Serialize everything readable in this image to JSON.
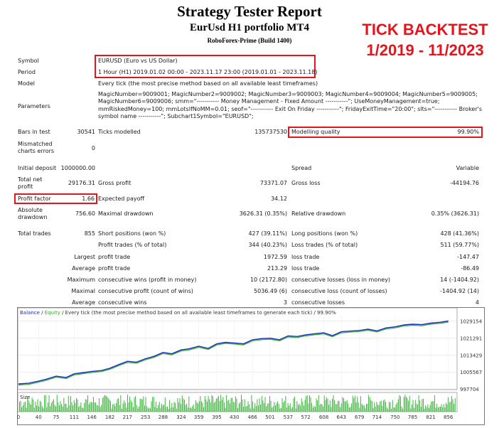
{
  "header": {
    "title": "Strategy Tester Report",
    "subtitle": "EurUsd H1 portfolio MT4",
    "broker": "RoboForex-Prime (Build 1400)",
    "banner_line1": "TICK BACKTEST",
    "banner_line2": "1/2019 - 11/2023",
    "banner_color": "#e3141b"
  },
  "settings": {
    "symbol_label": "Symbol",
    "symbol_value": "EURUSD (Euro vs US Dollar)",
    "period_label": "Period",
    "period_value": "1 Hour (H1) 2019.01.02 00:00 - 2023.11.17 23:00 (2019.01.01 - 2023.11.18)",
    "model_label": "Model",
    "model_value": "Every tick (the most precise method based on all available least timeframes)",
    "parameters_label": "Parameters",
    "parameters_value": "MagicNumber=9009001; MagicNumber2=9009002; MagicNumber3=9009003; MagicNumber4=9009004; MagicNumber5=9009005; MagicNumber6=9009006; smm=\"----------- Money Management - Fixed Amount -----------\"; UseMoneyManagement=true; mmRiskedMoney=100; mmLotsIfNoMM=0.01; seof=\"----------- Exit On Friday -----------\"; FridayExitTime=\"20:00\"; slts=\"----------- Broker's symbol name -----------\"; Subchart1Symbol=\"EURUSD\";"
  },
  "stats": {
    "bars_label": "Bars in test",
    "bars_value": "30541",
    "ticks_label": "Ticks modelled",
    "ticks_value": "135737530",
    "quality_label": "Modelling quality",
    "quality_value": "99.90%",
    "mismatch_label1": "Mismatched",
    "mismatch_label2": "charts errors",
    "mismatch_value": "0",
    "deposit_label": "Initial deposit",
    "deposit_value": "1000000.00",
    "spread_label": "Spread",
    "spread_value": "Variable",
    "netprofit_label1": "Total net",
    "netprofit_label2": "profit",
    "netprofit_value": "29176.31",
    "grossprofit_label": "Gross profit",
    "grossprofit_value": "73371.07",
    "grossloss_label": "Gross loss",
    "grossloss_value": "-44194.76",
    "pf_label": "Profit factor",
    "pf_value": "1.66",
    "payoff_label": "Expected payoff",
    "payoff_value": "34.12",
    "absdd_label1": "Absolute",
    "absdd_label2": "drawdown",
    "absdd_value": "756.60",
    "maxdd_label": "Maximal drawdown",
    "maxdd_value": "3626.31 (0.35%)",
    "reldd_label": "Relative drawdown",
    "reldd_value": "0.35% (3626.31)",
    "trades_label": "Total trades",
    "trades_value": "855",
    "short_label": "Short positions (won %)",
    "short_value": "427 (39.11%)",
    "long_label": "Long positions (won %)",
    "long_value": "428 (41.36%)",
    "profit_trades_label": "Profit trades (% of total)",
    "profit_trades_value": "344 (40.23%)",
    "loss_trades_label": "Loss trades (% of total)",
    "loss_trades_value": "511 (59.77%)",
    "largest_label": "Largest",
    "largest_profit_label": "profit trade",
    "largest_profit_value": "1972.59",
    "largest_loss_label": "loss trade",
    "largest_loss_value": "-147.47",
    "average_label": "Average",
    "avg_profit_label": "profit trade",
    "avg_profit_value": "213.29",
    "avg_loss_label": "loss trade",
    "avg_loss_value": "-86.49",
    "maximum_label": "Maximum",
    "max_wins_label": "consecutive wins (profit in money)",
    "max_wins_value": "10 (2172.80)",
    "max_losses_label": "consecutive losses (loss in money)",
    "max_losses_value": "14 (-1404.92)",
    "maximal_label": "Maximal",
    "maximal_profit_label": "consecutive profit (count of wins)",
    "maximal_profit_value": "5036.49 (6)",
    "maximal_loss_label": "consecutive loss (count of losses)",
    "maximal_loss_value": "-1404.92 (14)",
    "average2_label": "Average",
    "avg_cons_wins_label": "consecutive wins",
    "avg_cons_wins_value": "3",
    "avg_cons_losses_label": "consecutive losses",
    "avg_cons_losses_value": "4"
  },
  "chart_data": {
    "type": "line",
    "legend_balance": "Balance",
    "legend_sep": " / ",
    "legend_equity": "Equity",
    "legend_rest": " / Every tick (the most precise method based on all available least timeframes to generate each tick) / 99.90%",
    "size_label": "Size",
    "y_ticks": [
      "1029154",
      "1021291",
      "1013429",
      "1005567",
      "997704"
    ],
    "x_ticks": [
      "0",
      "40",
      "75",
      "111",
      "146",
      "182",
      "217",
      "253",
      "288",
      "324",
      "359",
      "395",
      "430",
      "466",
      "501",
      "537",
      "572",
      "608",
      "643",
      "679",
      "714",
      "750",
      "785",
      "821",
      "856"
    ],
    "ylim": [
      997704,
      1031000
    ],
    "xlim": [
      0,
      872
    ],
    "balance_color": "#1b2cc1",
    "equity_color": "#2fae2f",
    "size_color": "#2fae2f",
    "series": [
      {
        "name": "Balance",
        "x": [
          0,
          20,
          40,
          55,
          75,
          95,
          111,
          130,
          146,
          165,
          182,
          200,
          217,
          235,
          253,
          270,
          288,
          305,
          324,
          340,
          359,
          378,
          395,
          412,
          430,
          448,
          466,
          484,
          501,
          520,
          537,
          555,
          572,
          590,
          608,
          625,
          643,
          660,
          679,
          696,
          714,
          732,
          750,
          768,
          785,
          803,
          821,
          840,
          856
        ],
        "values": [
          1000000,
          1000300,
          1001300,
          1002200,
          1003600,
          1003000,
          1004700,
          1005300,
          1005800,
          1006200,
          1007300,
          1009000,
          1010500,
          1010100,
          1011700,
          1012800,
          1014600,
          1014000,
          1015800,
          1016300,
          1017500,
          1016500,
          1018600,
          1019300,
          1019000,
          1018600,
          1020500,
          1021000,
          1021200,
          1020500,
          1022300,
          1022000,
          1022800,
          1023300,
          1023700,
          1022400,
          1024200,
          1024500,
          1024800,
          1025400,
          1024600,
          1026000,
          1026500,
          1027400,
          1027700,
          1027500,
          1028200,
          1028600,
          1029176
        ]
      }
    ]
  }
}
